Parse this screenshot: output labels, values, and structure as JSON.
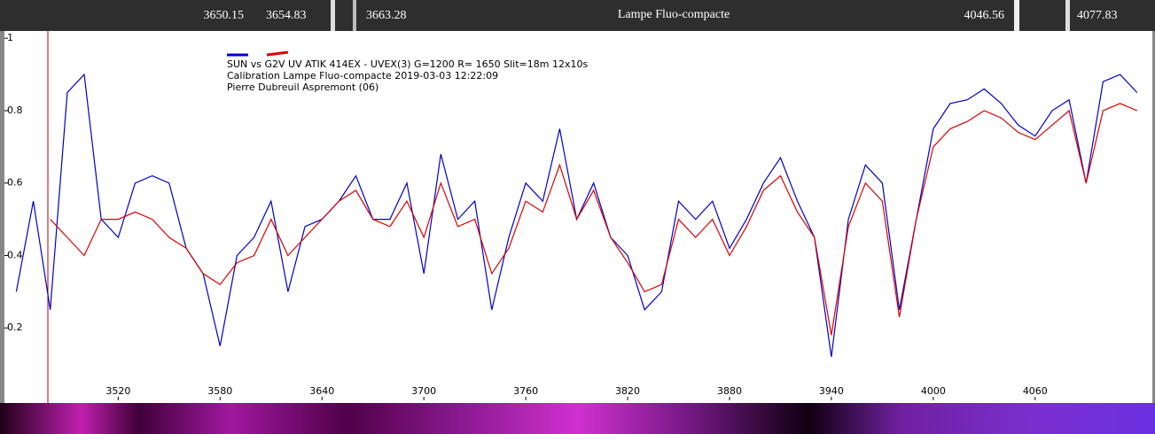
{
  "lamp_strip": {
    "title": "Lampe Fluo-compacte",
    "lines": [
      "3650.15",
      "3654.83",
      "3663.28",
      "4046.56",
      "4077.83"
    ]
  },
  "chart_data": {
    "type": "line",
    "annotations": [
      "SUN vs G2V UV  ATIK 414EX - UVEX(3)  G=1200  R= 1650  Slit=18m    12x10s",
      "Calibration Lampe Fluo-compacte  2019-03-03 12:22:09",
      "Pierre Dubreuil Aspremont (06)"
    ],
    "x": [
      3460,
      3470,
      3480,
      3490,
      3500,
      3510,
      3520,
      3530,
      3540,
      3550,
      3560,
      3570,
      3580,
      3590,
      3600,
      3610,
      3620,
      3630,
      3640,
      3650,
      3660,
      3670,
      3680,
      3690,
      3700,
      3710,
      3720,
      3730,
      3740,
      3750,
      3760,
      3770,
      3780,
      3790,
      3800,
      3810,
      3820,
      3830,
      3840,
      3850,
      3860,
      3870,
      3880,
      3890,
      3900,
      3910,
      3920,
      3930,
      3940,
      3950,
      3960,
      3970,
      3980,
      3990,
      4000,
      4010,
      4020,
      4030,
      4040,
      4050,
      4060,
      4070,
      4080,
      4090,
      4100,
      4110,
      4120
    ],
    "series": [
      {
        "color": "#0000cc",
        "values": [
          0.3,
          0.55,
          0.25,
          0.85,
          0.9,
          0.5,
          0.45,
          0.6,
          0.62,
          0.6,
          0.42,
          0.35,
          0.15,
          0.4,
          0.45,
          0.55,
          0.3,
          0.48,
          0.5,
          0.55,
          0.62,
          0.5,
          0.5,
          0.6,
          0.35,
          0.68,
          0.5,
          0.55,
          0.25,
          0.45,
          0.6,
          0.55,
          0.75,
          0.5,
          0.6,
          0.45,
          0.4,
          0.25,
          0.3,
          0.55,
          0.5,
          0.55,
          0.42,
          0.5,
          0.6,
          0.67,
          0.55,
          0.45,
          0.12,
          0.5,
          0.65,
          0.6,
          0.25,
          0.5,
          0.75,
          0.82,
          0.83,
          0.86,
          0.82,
          0.76,
          0.73,
          0.8,
          0.83,
          0.6,
          0.88,
          0.9,
          0.85
        ]
      },
      {
        "color": "#dd0000",
        "values": [
          null,
          null,
          0.5,
          0.45,
          0.4,
          0.5,
          0.5,
          0.52,
          0.5,
          0.45,
          0.42,
          0.35,
          0.32,
          0.38,
          0.4,
          0.5,
          0.4,
          0.45,
          0.5,
          0.55,
          0.58,
          0.5,
          0.48,
          0.55,
          0.45,
          0.6,
          0.48,
          0.5,
          0.35,
          0.42,
          0.55,
          0.52,
          0.65,
          0.5,
          0.58,
          0.45,
          0.38,
          0.3,
          0.32,
          0.5,
          0.45,
          0.5,
          0.4,
          0.48,
          0.58,
          0.62,
          0.52,
          0.45,
          0.18,
          0.48,
          0.6,
          0.55,
          0.23,
          0.5,
          0.7,
          0.75,
          0.77,
          0.8,
          0.78,
          0.74,
          0.72,
          0.76,
          0.8,
          0.6,
          0.8,
          0.82,
          0.8
        ]
      }
    ],
    "xlim": [
      3453,
      4129
    ],
    "xticks": [
      3520,
      3580,
      3640,
      3700,
      3760,
      3820,
      3880,
      3940,
      4000,
      4060
    ],
    "ylim": [
      0,
      1.02
    ],
    "yticks": [
      0.2,
      0.4,
      0.6,
      0.8,
      1
    ]
  }
}
